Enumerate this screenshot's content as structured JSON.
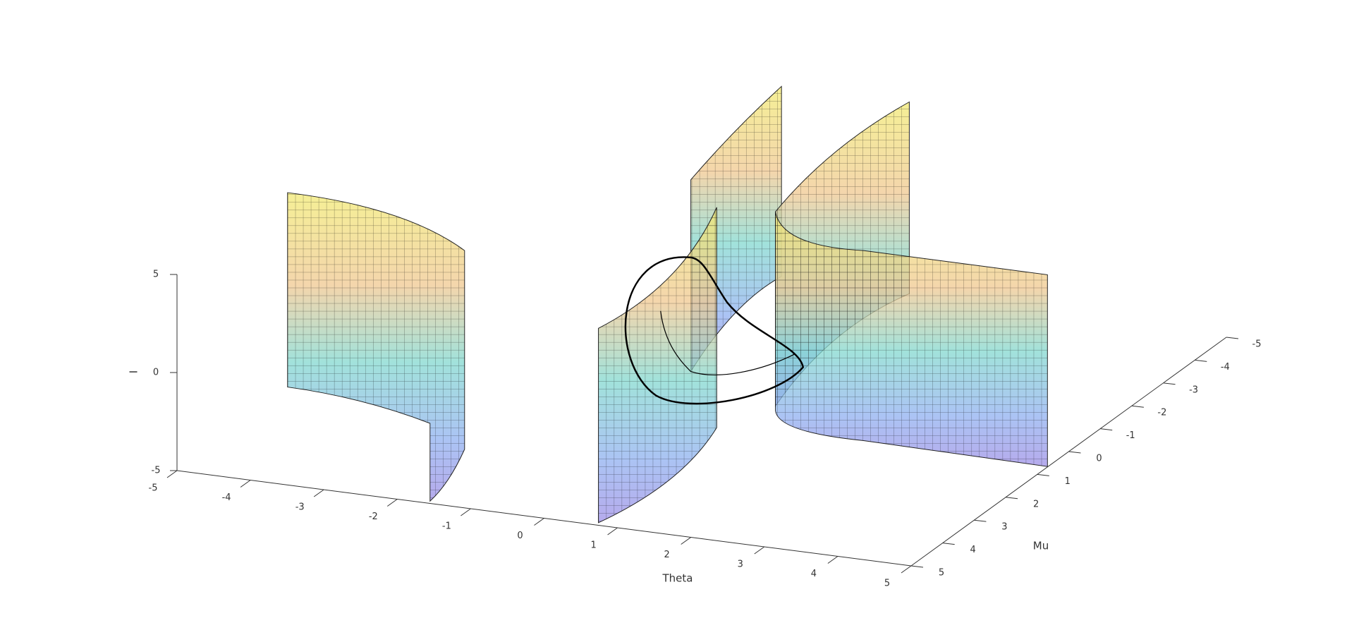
{
  "chart_data": {
    "type": "surface3d",
    "xlabel": "Theta",
    "ylabel": "Mu",
    "zlabel": "I",
    "xlim": [
      -5,
      5
    ],
    "xticks": [
      -5,
      -4,
      -3,
      -2,
      -1,
      0,
      1,
      2,
      3,
      4,
      5
    ],
    "ylim": [
      -5,
      5
    ],
    "yticks": [
      -5,
      -4,
      -3,
      -2,
      -1,
      0,
      1,
      2,
      3,
      4,
      5
    ],
    "zlim": [
      -5,
      5
    ],
    "zticks": [
      -5,
      0,
      5
    ]
  }
}
